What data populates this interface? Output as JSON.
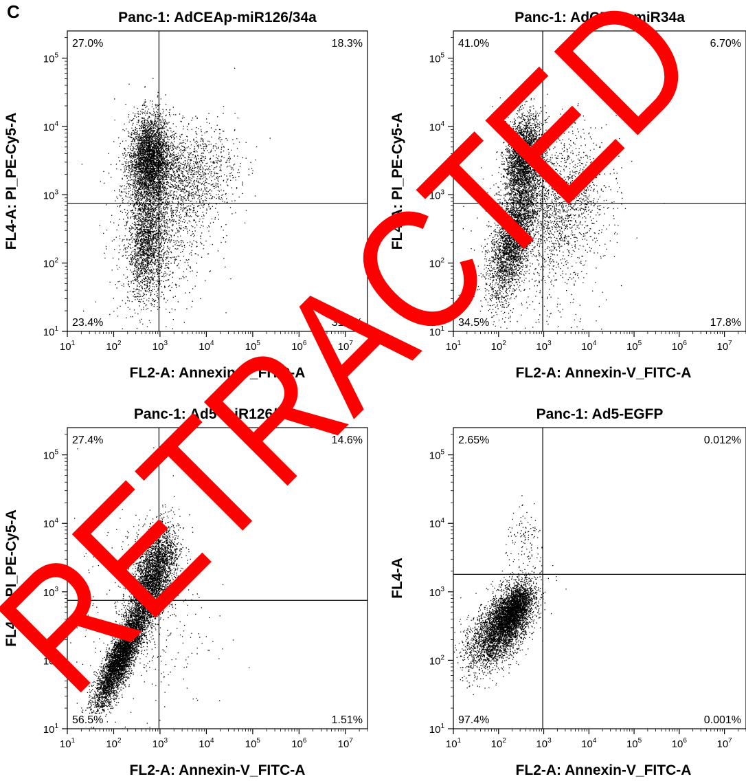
{
  "figure": {
    "panel_letter": "C",
    "stamp_text": "RETRACTED",
    "stamp_color": "#ff0000",
    "dot_color": "#000000"
  },
  "chart_data": [
    {
      "type": "scatter",
      "title": "Panc-1: AdCEAp-miR126/34a",
      "xlabel": "FL2-A: Annexin-V_FITC-A",
      "ylabel": "FL4-A: PI_PE-Cy5-A",
      "x_scale": "log",
      "y_scale": "log",
      "xlim": [
        10,
        30000000
      ],
      "ylim": [
        10,
        250000
      ],
      "x_ticks": [
        "10^1",
        "10^2",
        "10^3",
        "10^4",
        "10^5",
        "10^6",
        "10^7"
      ],
      "y_ticks": [
        "10^1",
        "10^2",
        "10^3",
        "10^4",
        "10^5"
      ],
      "gate_x": 950,
      "gate_y": 750,
      "quadrant_percentages": {
        "UL": "27.0%",
        "UR": "18.3%",
        "LL": "23.4%",
        "LR": "31.3%"
      },
      "populations": [
        {
          "n": 3400,
          "cx": 2.76,
          "cy": 3.52,
          "sx": 0.22,
          "sy": 0.33,
          "rho": 0.1
        },
        {
          "n": 1700,
          "cx": 2.72,
          "cy": 2.3,
          "sx": 0.2,
          "sy": 0.4,
          "rho": 0.2
        },
        {
          "n": 1400,
          "cx": 3.55,
          "cy": 3.3,
          "sx": 0.55,
          "sy": 0.35,
          "rho": 0.1
        },
        {
          "n": 900,
          "cx": 3.0,
          "cy": 2.4,
          "sx": 0.5,
          "sy": 0.6,
          "rho": 0.1
        }
      ]
    },
    {
      "type": "scatter",
      "title": "Panc-1: AdCEAp-miR34a",
      "xlabel": "FL2-A: Annexin-V_FITC-A",
      "ylabel": "FL4-A: PI_PE-Cy5-A",
      "x_scale": "log",
      "y_scale": "log",
      "xlim": [
        10,
        30000000
      ],
      "ylim": [
        10,
        250000
      ],
      "x_ticks": [
        "10^1",
        "10^2",
        "10^3",
        "10^4",
        "10^5",
        "10^6",
        "10^7"
      ],
      "y_ticks": [
        "10^1",
        "10^2",
        "10^3",
        "10^4",
        "10^5"
      ],
      "gate_x": 950,
      "gate_y": 750,
      "quadrant_percentages": {
        "UL": "41.0%",
        "UR": "6.70%",
        "LL": "34.5%",
        "LR": "17.8%"
      },
      "populations": [
        {
          "n": 2600,
          "cx": 2.55,
          "cy": 3.55,
          "sx": 0.2,
          "sy": 0.3,
          "rho": 0.2
        },
        {
          "n": 2800,
          "cx": 2.3,
          "cy": 2.35,
          "sx": 0.25,
          "sy": 0.45,
          "rho": 0.6
        },
        {
          "n": 1500,
          "cx": 3.3,
          "cy": 2.9,
          "sx": 0.55,
          "sy": 0.5,
          "rho": 0.2
        },
        {
          "n": 600,
          "cx": 2.9,
          "cy": 2.3,
          "sx": 0.7,
          "sy": 0.7,
          "rho": 0.0
        }
      ]
    },
    {
      "type": "scatter",
      "title": "Panc-1: Ad5-miR126/34a",
      "xlabel": "FL2-A: Annexin-V_FITC-A",
      "ylabel": "FL4-A: PI_PE-Cy5-A",
      "x_scale": "log",
      "y_scale": "log",
      "xlim": [
        10,
        30000000
      ],
      "ylim": [
        10,
        250000
      ],
      "x_ticks": [
        "10^1",
        "10^2",
        "10^3",
        "10^4",
        "10^5",
        "10^6",
        "10^7"
      ],
      "y_ticks": [
        "10^1",
        "10^2",
        "10^3",
        "10^4",
        "10^5"
      ],
      "gate_x": 950,
      "gate_y": 750,
      "quadrant_percentages": {
        "UL": "27.4%",
        "UR": "14.6%",
        "LL": "56.5%",
        "LR": "1.51%"
      },
      "populations": [
        {
          "n": 4600,
          "cx": 2.15,
          "cy": 2.05,
          "sx": 0.28,
          "sy": 0.38,
          "rho": 0.85
        },
        {
          "n": 2600,
          "cx": 2.8,
          "cy": 3.1,
          "sx": 0.25,
          "sy": 0.35,
          "rho": 0.6
        },
        {
          "n": 900,
          "cx": 2.9,
          "cy": 3.5,
          "sx": 0.25,
          "sy": 0.3,
          "rho": 0.2
        },
        {
          "n": 350,
          "cx": 2.6,
          "cy": 2.6,
          "sx": 0.7,
          "sy": 0.7,
          "rho": 0.0
        }
      ]
    },
    {
      "type": "scatter",
      "title": "Panc-1: Ad5-EGFP",
      "xlabel": "FL2-A: Annexin-V_FITC-A",
      "ylabel": "FL4-A",
      "x_scale": "log",
      "y_scale": "log",
      "xlim": [
        10,
        30000000
      ],
      "ylim": [
        10,
        250000
      ],
      "x_ticks": [
        "10^1",
        "10^2",
        "10^3",
        "10^4",
        "10^5",
        "10^6",
        "10^7"
      ],
      "y_ticks": [
        "10^1",
        "10^2",
        "10^3",
        "10^4",
        "10^5"
      ],
      "gate_x": 950,
      "gate_y": 1800,
      "quadrant_percentages": {
        "UL": "2.65%",
        "UR": "0.012%",
        "LL": "97.4%",
        "LR": "0.001%"
      },
      "populations": [
        {
          "n": 3300,
          "cx": 2.2,
          "cy": 2.6,
          "sx": 0.3,
          "sy": 0.28,
          "rho": 0.55
        },
        {
          "n": 1300,
          "cx": 2.35,
          "cy": 2.75,
          "sx": 0.17,
          "sy": 0.15,
          "rho": 0.5
        },
        {
          "n": 1000,
          "cx": 1.75,
          "cy": 2.3,
          "sx": 0.3,
          "sy": 0.25,
          "rho": 0.4
        },
        {
          "n": 110,
          "cx": 2.6,
          "cy": 3.75,
          "sx": 0.22,
          "sy": 0.2,
          "rho": 0.0
        }
      ]
    }
  ]
}
